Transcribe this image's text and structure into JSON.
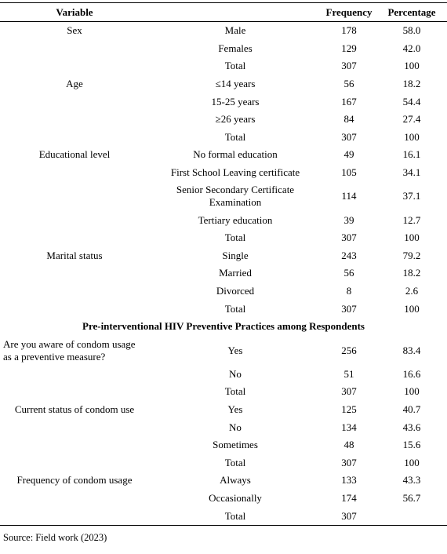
{
  "table": {
    "headers": [
      "Variable",
      "Frequency",
      "Percentage"
    ],
    "groups": [
      {
        "rows": [
          {
            "variable": "Sex",
            "item": "Male",
            "frequency": 178,
            "percentage": "58.0"
          },
          {
            "item": "Females",
            "frequency": 129,
            "percentage": "42.0"
          },
          {
            "item": "Total",
            "frequency": 307,
            "percentage": "100"
          },
          {
            "variable": "Age",
            "item": "≤14 years",
            "frequency": 56,
            "percentage": "18.2"
          },
          {
            "item": "15-25 years",
            "frequency": 167,
            "percentage": "54.4"
          },
          {
            "item": "≥26 years",
            "frequency": 84,
            "percentage": "27.4"
          },
          {
            "item": "Total",
            "frequency": 307,
            "percentage": "100"
          },
          {
            "variable": "Educational level",
            "item": "No formal education",
            "frequency": 49,
            "percentage": "16.1"
          },
          {
            "item": "First School Leaving certificate",
            "frequency": 105,
            "percentage": "34.1"
          },
          {
            "item": "Senior Secondary Certificate Examination",
            "frequency": 114,
            "percentage": "37.1"
          },
          {
            "item": "Tertiary education",
            "frequency": 39,
            "percentage": "12.7"
          },
          {
            "item": "Total",
            "frequency": 307,
            "percentage": "100"
          },
          {
            "variable": "Marital status",
            "item": "Single",
            "frequency": 243,
            "percentage": "79.2"
          },
          {
            "item": "Married",
            "frequency": 56,
            "percentage": "18.2"
          },
          {
            "item": "Divorced",
            "frequency": 8,
            "percentage": "2.6"
          },
          {
            "item": "Total",
            "frequency": 307,
            "percentage": "100"
          }
        ]
      },
      {
        "heading": "Pre-interventional HIV Preventive Practices among Respondents",
        "rows": [
          {
            "variable": "Are you aware of condom usage as a preventive measure?",
            "item": "Yes",
            "frequency": 256,
            "percentage": "83.4"
          },
          {
            "item": "No",
            "frequency": 51,
            "percentage": "16.6"
          },
          {
            "item": "Total",
            "frequency": 307,
            "percentage": "100"
          },
          {
            "variable": "Current status of condom use",
            "item": "Yes",
            "frequency": 125,
            "percentage": "40.7"
          },
          {
            "item": "No",
            "frequency": 134,
            "percentage": "43.6"
          },
          {
            "item": "Sometimes",
            "frequency": 48,
            "percentage": "15.6"
          },
          {
            "item": "Total",
            "frequency": 307,
            "percentage": "100"
          },
          {
            "variable": "Frequency of condom usage",
            "item": "Always",
            "frequency": 133,
            "percentage": "43.3"
          },
          {
            "item": "Occasionally",
            "frequency": 174,
            "percentage": "56.7"
          },
          {
            "item": "Total",
            "frequency": 307
          }
        ]
      }
    ]
  },
  "source": "Source: Field work (2023)"
}
